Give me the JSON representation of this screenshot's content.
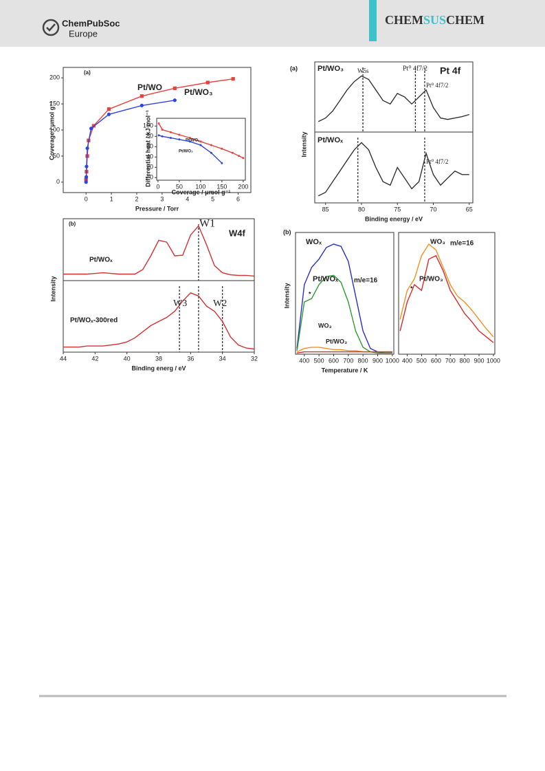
{
  "header": {
    "logo_line1": "ChemPubSoc",
    "logo_line2": "Europe",
    "journal": [
      "CHEM",
      "SUS",
      "CHEM"
    ]
  },
  "chart_data": [
    {
      "type": "line",
      "xlabel": "Pressure / Torr",
      "ylabel": "Coverage / μmol g⁻¹",
      "annotations": [
        "(a)"
      ],
      "xlim": [
        -0.9,
        6.5
      ],
      "xticks": [
        0,
        1,
        2,
        3,
        4,
        5,
        6
      ],
      "ylim": [
        -20,
        220
      ],
      "yticks": [
        0,
        50,
        100,
        150,
        200
      ],
      "series": [
        {
          "name": "Pt/WO",
          "color": "#e8403c",
          "marker": "square",
          "x": [
            0,
            0.02,
            0.05,
            0.1,
            0.3,
            0.9,
            2.2,
            3.5,
            4.8,
            5.8
          ],
          "values": [
            5,
            20,
            50,
            80,
            108,
            140,
            165,
            180,
            191,
            198
          ]
        },
        {
          "name": "Pt/WO₃",
          "color": "#2f45e0",
          "marker": "circle",
          "x": [
            0,
            0.01,
            0.02,
            0.05,
            0.2,
            0.9,
            2.2,
            3.5
          ],
          "values": [
            0,
            10,
            30,
            65,
            103,
            130,
            147,
            157
          ]
        }
      ]
    },
    {
      "type": "line",
      "xlabel": "Coverage / μmol g⁻¹",
      "ylabel": "Differential heat / kJ mol⁻¹",
      "xlim": [
        -3,
        205
      ],
      "xticks": [
        0,
        50,
        100,
        150,
        200
      ],
      "ylim": [
        -5,
        115
      ],
      "yticks": [
        0,
        20,
        40,
        60,
        80,
        100
      ],
      "series": [
        {
          "name": "Pt/WOₓ",
          "color": "#e8403c",
          "marker": "circle",
          "x": [
            2,
            10,
            30,
            50,
            75,
            100,
            125,
            150,
            175,
            190,
            200
          ],
          "values": [
            105,
            93,
            88,
            83,
            77,
            70,
            63,
            56,
            48,
            42,
            38
          ]
        },
        {
          "name": "Pt/WO₃",
          "color": "#2f45e0",
          "marker": "circle",
          "x": [
            2,
            10,
            30,
            50,
            75,
            100,
            125,
            150
          ],
          "values": [
            82,
            80,
            77,
            74,
            70,
            63,
            48,
            28
          ]
        }
      ]
    },
    {
      "type": "line",
      "ylabel": "Intensity",
      "annotations": [
        "(a)",
        "Pt/WO₃",
        "Pt 4f",
        "W5s",
        "Pt⁰ 4f7/2",
        "Pt⁰ 4f7/2"
      ],
      "xlim": [
        86.5,
        64.5
      ],
      "ylim": [
        0,
        1
      ],
      "vlines": [
        79.8,
        72.5,
        71.2
      ],
      "x": [
        86,
        85,
        84,
        83,
        82,
        81,
        80,
        79,
        78,
        77,
        76,
        75,
        74,
        73,
        72,
        71,
        70,
        69,
        68,
        67,
        66,
        65
      ],
      "series": [
        {
          "color": "#333333",
          "values": [
            0.15,
            0.2,
            0.3,
            0.45,
            0.6,
            0.72,
            0.8,
            0.75,
            0.6,
            0.45,
            0.4,
            0.55,
            0.5,
            0.4,
            0.5,
            0.6,
            0.35,
            0.2,
            0.18,
            0.2,
            0.22,
            0.25
          ]
        }
      ]
    },
    {
      "type": "line",
      "xlabel": "Binding energy / eV",
      "annotations": [
        "Pt/WOₓ",
        "Pt⁰ 4f7/2"
      ],
      "xlim": [
        86.5,
        64.5
      ],
      "xticks": [
        85,
        80,
        75,
        70,
        65
      ],
      "ylim": [
        0,
        1
      ],
      "vlines": [
        80.5,
        71.2
      ],
      "x": [
        86,
        85,
        84,
        83,
        82,
        81,
        80,
        79,
        78,
        77,
        76,
        75,
        74,
        73,
        72,
        71,
        70,
        69,
        68,
        67,
        66,
        65
      ],
      "series": [
        {
          "color": "#333333",
          "values": [
            0.1,
            0.15,
            0.3,
            0.45,
            0.6,
            0.75,
            0.85,
            0.75,
            0.5,
            0.3,
            0.25,
            0.5,
            0.35,
            0.2,
            0.3,
            0.7,
            0.4,
            0.25,
            0.35,
            0.45,
            0.4,
            0.4
          ]
        }
      ]
    },
    {
      "type": "line",
      "annotations": [
        "(b)",
        "W1",
        "W4f",
        "Pt/WOₓ"
      ],
      "xlim": [
        44,
        32
      ],
      "ylim": [
        0,
        0.95
      ],
      "vlines": [
        35.5
      ],
      "x": [
        44,
        43.5,
        43,
        42.5,
        42,
        41.5,
        41,
        40.5,
        40,
        39.5,
        39,
        38.5,
        38,
        37.5,
        37,
        36.5,
        36,
        35.5,
        35,
        34.5,
        34,
        33.5,
        33,
        32.5,
        32
      ],
      "series": [
        {
          "color": "#d43030",
          "values": [
            0.1,
            0.1,
            0.1,
            0.1,
            0.11,
            0.12,
            0.11,
            0.1,
            0.1,
            0.1,
            0.17,
            0.38,
            0.62,
            0.59,
            0.38,
            0.39,
            0.7,
            0.84,
            0.55,
            0.23,
            0.12,
            0.09,
            0.08,
            0.08,
            0.07
          ]
        }
      ]
    },
    {
      "type": "line",
      "xlabel": "Binding energ / eV",
      "ylabel": "Intensity",
      "annotations": [
        "W3",
        "W2",
        "Pt/WOₓ-300red"
      ],
      "xlim": [
        44,
        32
      ],
      "xticks": [
        44,
        42,
        40,
        38,
        36,
        34,
        32
      ],
      "ylim": [
        0,
        0.7
      ],
      "vlines": [
        35.5,
        36.7,
        34
      ],
      "x": [
        44,
        43.5,
        43,
        42.5,
        42,
        41.5,
        41,
        40.5,
        40,
        39.5,
        39,
        38.5,
        38,
        37.5,
        37,
        36.5,
        36,
        35.5,
        35,
        34.5,
        34,
        33.5,
        33,
        32.5,
        32
      ],
      "series": [
        {
          "color": "#d43030",
          "values": [
            0.05,
            0.05,
            0.05,
            0.06,
            0.06,
            0.06,
            0.07,
            0.08,
            0.1,
            0.14,
            0.2,
            0.26,
            0.3,
            0.34,
            0.4,
            0.5,
            0.58,
            0.55,
            0.45,
            0.4,
            0.3,
            0.15,
            0.07,
            0.04,
            0.03
          ]
        }
      ]
    },
    {
      "type": "line",
      "xlabel": "Temperature / K",
      "ylabel": "Intensity",
      "annotations": [
        "(b)",
        "m/e=16",
        "*"
      ],
      "xlim": [
        340,
        1010
      ],
      "xticks": [
        400,
        500,
        600,
        700,
        800,
        900,
        1000
      ],
      "ylim": [
        0,
        1.05
      ],
      "x": [
        350,
        400,
        450,
        500,
        550,
        600,
        650,
        700,
        750,
        800,
        850,
        900,
        950,
        1000
      ],
      "series": [
        {
          "name": "WOₓ",
          "color": "#2b2bd0",
          "values": [
            0.05,
            0.6,
            0.75,
            0.82,
            0.92,
            0.95,
            0.93,
            0.8,
            0.5,
            0.2,
            0.05,
            0.02,
            0.01,
            0.01
          ]
        },
        {
          "name": "Pt/WOₓ",
          "color": "#2e9a2e",
          "values": [
            0.03,
            0.45,
            0.48,
            0.6,
            0.67,
            0.68,
            0.62,
            0.45,
            0.2,
            0.06,
            0.02,
            0.01,
            0.01,
            0.01
          ]
        },
        {
          "name": "WO₃",
          "color": "#f39020",
          "values": [
            0.02,
            0.05,
            0.06,
            0.06,
            0.05,
            0.04,
            0.04,
            0.03,
            0.03,
            0.02,
            0.02,
            0.02,
            0.02,
            0.02
          ]
        },
        {
          "name": "Pt/WO₃",
          "color": "#e02828",
          "values": [
            0.01,
            0.02,
            0.02,
            0.02,
            0.02,
            0.02,
            0.02,
            0.02,
            0.02,
            0.02,
            0.02,
            0.02,
            0.02,
            0.02
          ]
        }
      ]
    },
    {
      "type": "line",
      "annotations": [
        "m/e=16",
        "*"
      ],
      "xlim": [
        340,
        1010
      ],
      "xticks": [
        400,
        500,
        600,
        700,
        800,
        900,
        1000
      ],
      "ylim": [
        0,
        1.05
      ],
      "x": [
        350,
        400,
        450,
        500,
        550,
        600,
        650,
        700,
        750,
        800,
        850,
        900,
        950,
        1000
      ],
      "series": [
        {
          "name": "WO₃",
          "color": "#f39020",
          "values": [
            0.3,
            0.55,
            0.65,
            0.85,
            0.95,
            0.9,
            0.75,
            0.6,
            0.5,
            0.45,
            0.38,
            0.3,
            0.22,
            0.15
          ]
        },
        {
          "name": "Pt/WO₃",
          "color": "#e02828",
          "values": [
            0.2,
            0.45,
            0.6,
            0.55,
            0.82,
            0.85,
            0.72,
            0.55,
            0.45,
            0.35,
            0.28,
            0.2,
            0.15,
            0.1
          ]
        }
      ]
    }
  ]
}
